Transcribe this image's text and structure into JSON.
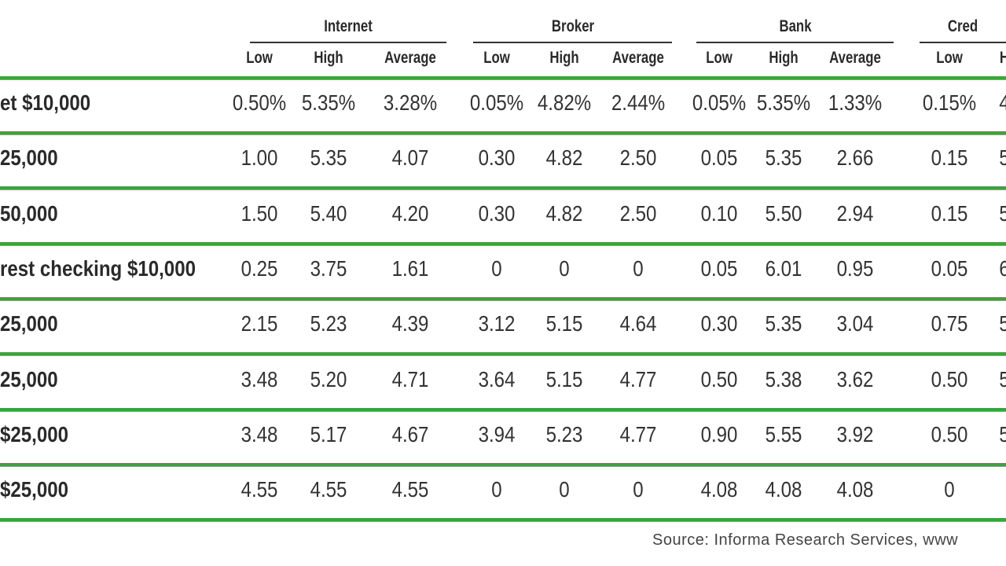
{
  "table": {
    "groups": [
      "Internet",
      "Broker",
      "Bank",
      "Cred"
    ],
    "subheaders": [
      "Low",
      "High",
      "Average",
      "Low",
      "High",
      "Average",
      "Low",
      "High",
      "Average",
      "Low",
      "H"
    ],
    "rows": [
      [
        "et $10,000",
        "0.50%",
        "5.35%",
        "3.28%",
        "0.05%",
        "4.82%",
        "2.44%",
        "0.05%",
        "5.35%",
        "1.33%",
        "0.15%",
        "4"
      ],
      [
        "25,000",
        "1.00",
        "5.35",
        "4.07",
        "0.30",
        "4.82",
        "2.50",
        "0.05",
        "5.35",
        "2.66",
        "0.15",
        "5"
      ],
      [
        "50,000",
        "1.50",
        "5.40",
        "4.20",
        "0.30",
        "4.82",
        "2.50",
        "0.10",
        "5.50",
        "2.94",
        "0.15",
        "5"
      ],
      [
        "rest checking $10,000",
        "0.25",
        "3.75",
        "1.61",
        "0",
        "0",
        "0",
        "0.05",
        "6.01",
        "0.95",
        "0.05",
        "6"
      ],
      [
        "25,000",
        "2.15",
        "5.23",
        "4.39",
        "3.12",
        "5.15",
        "4.64",
        "0.30",
        "5.35",
        "3.04",
        "0.75",
        "5"
      ],
      [
        "25,000",
        "3.48",
        "5.20",
        "4.71",
        "3.64",
        "5.15",
        "4.77",
        "0.50",
        "5.38",
        "3.62",
        "0.50",
        "5"
      ],
      [
        "$25,000",
        "3.48",
        "5.17",
        "4.67",
        "3.94",
        "5.23",
        "4.77",
        "0.90",
        "5.55",
        "3.92",
        "0.50",
        "5"
      ],
      [
        "$25,000",
        "4.55",
        "4.55",
        "4.55",
        "0",
        "0",
        "0",
        "4.08",
        "4.08",
        "4.08",
        "0"
      ]
    ],
    "source": "Source: Informa Research Services, www"
  }
}
